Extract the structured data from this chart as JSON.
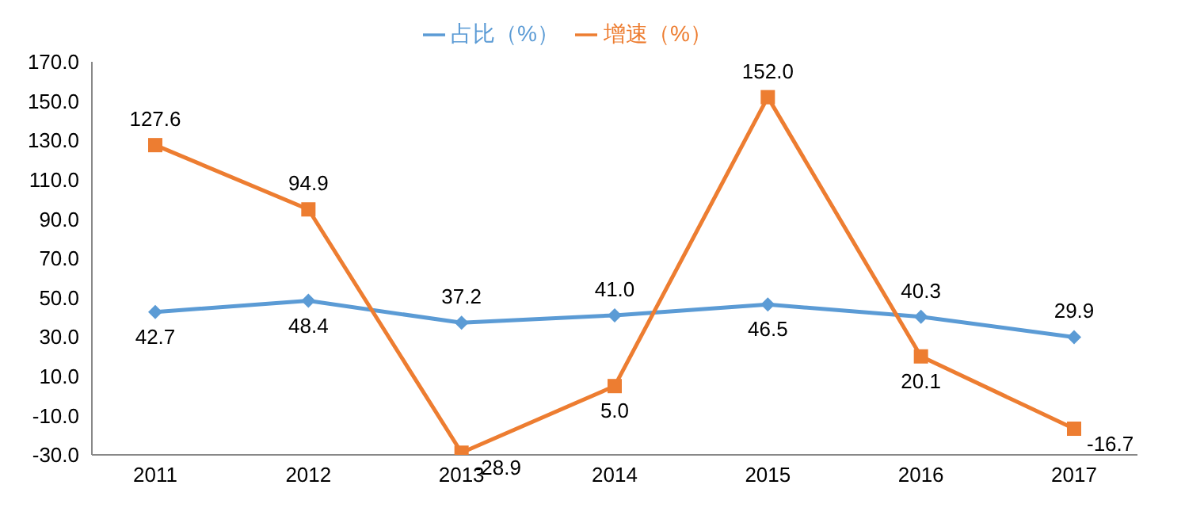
{
  "chart_data": {
    "type": "line",
    "categories": [
      "2011",
      "2012",
      "2013",
      "2014",
      "2015",
      "2016",
      "2017"
    ],
    "series": [
      {
        "name": "占比（%）",
        "color": "#5b9bd5",
        "marker": "diamond",
        "values": [
          42.7,
          48.4,
          37.2,
          41.0,
          46.5,
          40.3,
          29.9
        ],
        "value_labels": [
          "42.7",
          "48.4",
          "37.2",
          "41.0",
          "46.5",
          "40.3",
          "29.9"
        ]
      },
      {
        "name": "增速（%）",
        "color": "#ed7d31",
        "marker": "square",
        "values": [
          127.6,
          94.9,
          -28.9,
          5.0,
          152.0,
          20.1,
          -16.7
        ],
        "value_labels": [
          "127.6",
          "94.9",
          "-28.9",
          "5.0",
          "152.0",
          "20.1",
          "-16.7"
        ]
      }
    ],
    "ylim": [
      -30,
      170
    ],
    "yticks": [
      {
        "value": -30,
        "label": "-30.0"
      },
      {
        "value": -10,
        "label": "-10.0"
      },
      {
        "value": 10,
        "label": "10.0"
      },
      {
        "value": 30,
        "label": "30.0"
      },
      {
        "value": 50,
        "label": "50.0"
      },
      {
        "value": 70,
        "label": "70.0"
      },
      {
        "value": 90,
        "label": "90.0"
      },
      {
        "value": 110,
        "label": "110.0"
      },
      {
        "value": 130,
        "label": "130.0"
      },
      {
        "value": 150,
        "label": "150.0"
      },
      {
        "value": 170,
        "label": "170.0"
      }
    ],
    "legend": "top",
    "grid": false
  }
}
